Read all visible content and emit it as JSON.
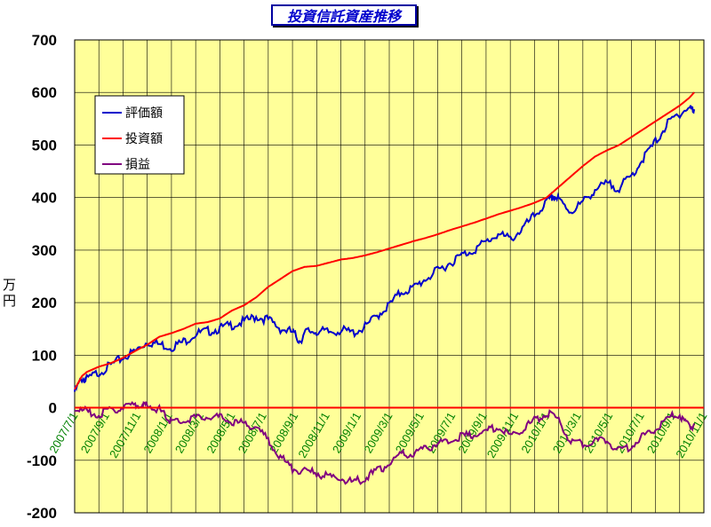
{
  "chart_data": {
    "type": "line",
    "title": "投資信託資産推移",
    "ylabel": "万円",
    "xlabel": "",
    "ylim": [
      -200,
      700
    ],
    "yticks": [
      -200,
      -100,
      0,
      100,
      200,
      300,
      400,
      500,
      600,
      700
    ],
    "x_tick_labels": [
      "2007/7/1",
      "2007/9/1",
      "2007/11/1",
      "2008/1/1",
      "2008/3/1",
      "2008/5/1",
      "2008/7/1",
      "2008/9/1",
      "2008/11/1",
      "2009/1/1",
      "2009/3/1",
      "2009/5/1",
      "2009/7/1",
      "2009/9/1",
      "2009/11/1",
      "2010/1/1",
      "2010/3/1",
      "2010/5/1",
      "2010/7/1",
      "2010/9/1",
      "2010/11/1"
    ],
    "grid": true,
    "legend_position": "top-left",
    "background_color": "#ffff99",
    "series": [
      {
        "name": "評価額",
        "color": "#0000cc",
        "points": [
          [
            0,
            35
          ],
          [
            0.3,
            60
          ],
          [
            0.5,
            58
          ],
          [
            1.0,
            72
          ],
          [
            1.5,
            85
          ],
          [
            2.0,
            100
          ],
          [
            2.5,
            112
          ],
          [
            3.0,
            130
          ],
          [
            3.5,
            125
          ],
          [
            4.0,
            120
          ],
          [
            4.5,
            130
          ],
          [
            5.0,
            145
          ],
          [
            5.5,
            150
          ],
          [
            6.0,
            155
          ],
          [
            6.5,
            162
          ],
          [
            7.0,
            168
          ],
          [
            7.5,
            178
          ],
          [
            8.0,
            172
          ],
          [
            8.5,
            155
          ],
          [
            9.0,
            148
          ],
          [
            9.3,
            132
          ],
          [
            9.6,
            150
          ],
          [
            10.0,
            150
          ],
          [
            10.5,
            148
          ],
          [
            11.0,
            152
          ],
          [
            11.5,
            147
          ],
          [
            12.0,
            158
          ],
          [
            12.5,
            180
          ],
          [
            13.0,
            200
          ],
          [
            13.5,
            225
          ],
          [
            14.0,
            232
          ],
          [
            14.5,
            250
          ],
          [
            15.0,
            265
          ],
          [
            15.5,
            280
          ],
          [
            16.0,
            295
          ],
          [
            16.5,
            305
          ],
          [
            17.0,
            320
          ],
          [
            17.5,
            335
          ],
          [
            18.0,
            325
          ],
          [
            18.5,
            345
          ],
          [
            19.0,
            370
          ],
          [
            19.5,
            395
          ],
          [
            19.8,
            408
          ],
          [
            20.0,
            400
          ],
          [
            20.5,
            378
          ],
          [
            21.0,
            395
          ],
          [
            21.5,
            420
          ],
          [
            22.0,
            430
          ],
          [
            22.5,
            423
          ],
          [
            23.0,
            445
          ],
          [
            23.5,
            480
          ],
          [
            24.0,
            510
          ],
          [
            24.5,
            545
          ],
          [
            25.0,
            565
          ],
          [
            25.4,
            575
          ],
          [
            25.6,
            568
          ]
        ]
      },
      {
        "name": "投資額",
        "color": "#ff0000",
        "points": [
          [
            0,
            35
          ],
          [
            0.3,
            60
          ],
          [
            0.5,
            68
          ],
          [
            1.0,
            78
          ],
          [
            1.5,
            85
          ],
          [
            2.0,
            95
          ],
          [
            2.5,
            108
          ],
          [
            3.0,
            120
          ],
          [
            3.5,
            135
          ],
          [
            4.0,
            142
          ],
          [
            4.5,
            150
          ],
          [
            5.0,
            160
          ],
          [
            5.5,
            163
          ],
          [
            6.0,
            170
          ],
          [
            6.5,
            185
          ],
          [
            7.0,
            195
          ],
          [
            7.5,
            210
          ],
          [
            8.0,
            230
          ],
          [
            8.5,
            245
          ],
          [
            9.0,
            260
          ],
          [
            9.5,
            268
          ],
          [
            10.0,
            270
          ],
          [
            10.5,
            276
          ],
          [
            11.0,
            282
          ],
          [
            11.5,
            285
          ],
          [
            12.0,
            290
          ],
          [
            12.5,
            296
          ],
          [
            13.0,
            303
          ],
          [
            13.5,
            310
          ],
          [
            14.0,
            317
          ],
          [
            14.5,
            323
          ],
          [
            15.0,
            330
          ],
          [
            15.5,
            338
          ],
          [
            16.0,
            345
          ],
          [
            16.5,
            352
          ],
          [
            17.0,
            360
          ],
          [
            17.5,
            368
          ],
          [
            18.0,
            375
          ],
          [
            18.5,
            382
          ],
          [
            19.0,
            390
          ],
          [
            19.5,
            400
          ],
          [
            20.0,
            420
          ],
          [
            20.5,
            440
          ],
          [
            21.0,
            460
          ],
          [
            21.5,
            478
          ],
          [
            22.0,
            490
          ],
          [
            22.5,
            500
          ],
          [
            23.0,
            515
          ],
          [
            23.5,
            530
          ],
          [
            24.0,
            545
          ],
          [
            24.5,
            560
          ],
          [
            25.0,
            575
          ],
          [
            25.4,
            590
          ],
          [
            25.6,
            600
          ]
        ]
      },
      {
        "name": "損益",
        "color": "#800080",
        "points": [
          [
            0,
            0
          ],
          [
            0.5,
            -3
          ],
          [
            1.0,
            -10
          ],
          [
            1.5,
            0
          ],
          [
            2.0,
            5
          ],
          [
            2.5,
            10
          ],
          [
            2.8,
            6
          ],
          [
            3.0,
            10
          ],
          [
            3.5,
            0
          ],
          [
            3.8,
            -15
          ],
          [
            4.0,
            -22
          ],
          [
            4.5,
            -20
          ],
          [
            5.0,
            -15
          ],
          [
            5.5,
            -12
          ],
          [
            6.0,
            -15
          ],
          [
            6.5,
            -23
          ],
          [
            7.0,
            -27
          ],
          [
            7.5,
            -32
          ],
          [
            8.0,
            -58
          ],
          [
            8.5,
            -90
          ],
          [
            9.0,
            -112
          ],
          [
            9.5,
            -118
          ],
          [
            10.0,
            -120
          ],
          [
            10.5,
            -128
          ],
          [
            11.0,
            -130
          ],
          [
            11.5,
            -138
          ],
          [
            12.0,
            -130
          ],
          [
            12.5,
            -116
          ],
          [
            13.0,
            -103
          ],
          [
            13.5,
            -85
          ],
          [
            14.0,
            -85
          ],
          [
            14.5,
            -73
          ],
          [
            15.0,
            -65
          ],
          [
            15.5,
            -58
          ],
          [
            16.0,
            -50
          ],
          [
            16.5,
            -47
          ],
          [
            17.0,
            -40
          ],
          [
            17.5,
            -33
          ],
          [
            18.0,
            -50
          ],
          [
            18.5,
            -37
          ],
          [
            19.0,
            -20
          ],
          [
            19.5,
            -5
          ],
          [
            20.0,
            -20
          ],
          [
            20.5,
            -62
          ],
          [
            21.0,
            -65
          ],
          [
            21.5,
            -58
          ],
          [
            22.0,
            -60
          ],
          [
            22.5,
            -77
          ],
          [
            23.0,
            -70
          ],
          [
            23.5,
            -50
          ],
          [
            24.0,
            -35
          ],
          [
            24.5,
            -15
          ],
          [
            25.0,
            -10
          ],
          [
            25.3,
            -28
          ],
          [
            25.6,
            -30
          ]
        ]
      }
    ]
  }
}
